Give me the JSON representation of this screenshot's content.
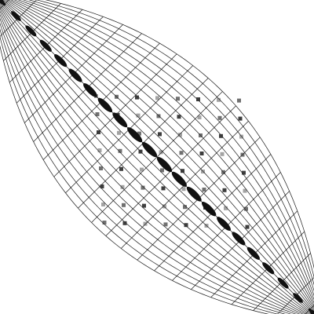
{
  "figure": {
    "kind": "distorted-grid-lens",
    "background": "#ffffff",
    "grid_color": "#1a1a1a",
    "ellipse_color": "#111111",
    "dot_color": "#333333",
    "grid_divisions": 24,
    "diagonal_ellipse_count": 22,
    "dot_block": {
      "columns": 8,
      "rows": 8
    },
    "caption": ""
  }
}
